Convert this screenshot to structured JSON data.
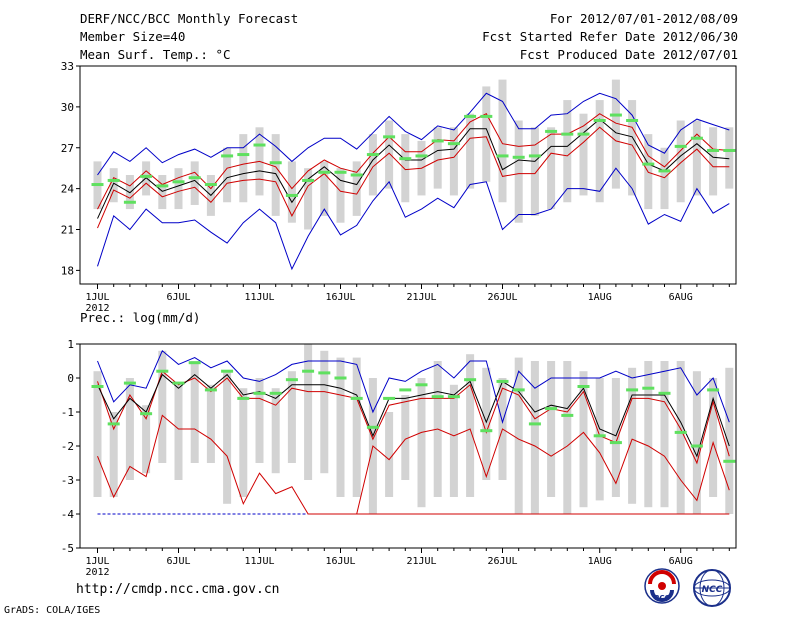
{
  "header": {
    "title": "DERF/NCC/BCC Monthly Forecast",
    "member_size": "Member Size=40",
    "variable": "Mean Surf. Temp.: °C",
    "period": "For 2012/07/01-2012/08/09",
    "fcst_started": "Fcst Started Refer Date 2012/06/30",
    "fcst_produced": "Fcst Produced Date 2012/07/01"
  },
  "footer": {
    "url": "http://cmdp.ncc.cma.gov.cn",
    "grads": "GrADS: COLA/IGES",
    "logo_bcc": "BCC",
    "logo_ncc": "NCC"
  },
  "colors": {
    "box": "#d3d3d3",
    "green": "#5fe05f",
    "blue": "#0000c8",
    "red": "#d00000",
    "black": "#000000"
  },
  "chart_data": [
    {
      "type": "box",
      "title": "Mean Surf. Temp.: °C",
      "ylim": [
        17,
        33
      ],
      "yticks": [
        18,
        21,
        24,
        27,
        30,
        33
      ],
      "x_labels": [
        {
          "day": 0,
          "label": "1JUL"
        },
        {
          "day": 5,
          "label": "6JUL"
        },
        {
          "day": 10,
          "label": "11JUL"
        },
        {
          "day": 15,
          "label": "16JUL"
        },
        {
          "day": 20,
          "label": "21JUL"
        },
        {
          "day": 25,
          "label": "26JUL"
        },
        {
          "day": 31,
          "label": "1AUG"
        },
        {
          "day": 36,
          "label": "6AUG"
        }
      ],
      "year_label": "2012",
      "days": 40,
      "box_low": [
        22.5,
        23.0,
        22.5,
        23.5,
        22.5,
        22.5,
        22.8,
        22.0,
        23.0,
        23.0,
        23.5,
        22.0,
        21.5,
        21.0,
        22.0,
        21.5,
        22.0,
        23.5,
        24.0,
        23.0,
        23.5,
        24.0,
        23.5,
        24.0,
        24.5,
        23.0,
        21.5,
        22.0,
        22.5,
        23.0,
        23.5,
        23.0,
        24.0,
        23.5,
        22.5,
        22.5,
        23.0,
        23.5,
        23.5,
        24.0
      ],
      "box_high": [
        26.0,
        25.5,
        25.0,
        26.0,
        25.0,
        25.5,
        26.0,
        25.0,
        27.0,
        28.0,
        28.5,
        28.0,
        26.0,
        25.5,
        26.0,
        25.5,
        26.0,
        28.0,
        29.0,
        28.0,
        27.5,
        28.5,
        28.5,
        29.5,
        31.5,
        32.0,
        29.0,
        28.5,
        28.5,
        30.5,
        29.5,
        30.5,
        32.0,
        30.5,
        28.0,
        27.0,
        29.0,
        29.0,
        28.5,
        28.5
      ],
      "green": [
        24.3,
        24.6,
        23.0,
        24.9,
        24.2,
        24.5,
        24.8,
        24.3,
        26.4,
        26.5,
        27.2,
        25.9,
        23.5,
        24.6,
        25.2,
        25.2,
        25.0,
        26.5,
        27.8,
        26.2,
        26.4,
        27.5,
        27.3,
        29.3,
        29.3,
        26.4,
        26.3,
        26.4,
        28.2,
        28.0,
        28.0,
        29.0,
        29.4,
        29.0,
        25.8,
        25.3,
        27.1,
        27.7,
        26.8,
        26.8
      ],
      "blue_high": [
        25.0,
        26.7,
        26.0,
        27.0,
        25.9,
        26.5,
        26.9,
        26.3,
        27.0,
        27.0,
        28.0,
        27.1,
        26.0,
        27.0,
        27.7,
        27.7,
        26.9,
        28.1,
        29.3,
        28.2,
        27.6,
        28.6,
        28.3,
        29.6,
        31.0,
        30.4,
        28.4,
        28.4,
        29.4,
        29.5,
        30.4,
        31.0,
        30.6,
        29.4,
        27.2,
        26.6,
        28.3,
        29.1,
        28.7,
        28.3
      ],
      "red_high": [
        22.5,
        24.8,
        24.2,
        25.3,
        24.3,
        24.8,
        25.2,
        24.0,
        25.5,
        25.8,
        26.0,
        25.6,
        24.0,
        25.3,
        26.1,
        25.5,
        25.2,
        26.6,
        27.8,
        26.7,
        26.7,
        27.6,
        27.5,
        28.9,
        29.5,
        27.3,
        27.1,
        27.2,
        28.0,
        28.0,
        28.6,
        29.5,
        28.8,
        28.5,
        26.4,
        25.6,
        26.8,
        28.0,
        26.9,
        26.8
      ],
      "black": [
        21.8,
        24.4,
        23.7,
        24.8,
        23.8,
        24.2,
        24.6,
        23.5,
        24.8,
        25.1,
        25.3,
        25.1,
        23.0,
        24.7,
        25.6,
        24.6,
        24.3,
        26.1,
        27.2,
        26.1,
        26.1,
        26.8,
        26.9,
        28.4,
        28.4,
        25.4,
        26.1,
        26.0,
        27.1,
        27.1,
        28.1,
        29.1,
        28.1,
        27.8,
        25.8,
        25.3,
        26.4,
        27.3,
        26.3,
        26.2
      ],
      "red_low": [
        21.1,
        23.9,
        23.3,
        24.4,
        23.4,
        23.8,
        24.1,
        23.0,
        24.4,
        24.6,
        24.7,
        24.5,
        22.0,
        24.2,
        25.1,
        23.8,
        23.6,
        25.6,
        26.6,
        25.4,
        25.5,
        26.1,
        26.3,
        27.7,
        27.8,
        24.9,
        25.1,
        25.1,
        26.6,
        26.4,
        27.4,
        28.5,
        27.5,
        27.2,
        25.2,
        24.8,
        25.9,
        26.9,
        25.6,
        25.6
      ],
      "blue_low": [
        18.3,
        22.0,
        21.0,
        22.5,
        21.5,
        21.5,
        21.7,
        20.8,
        20.0,
        21.5,
        22.5,
        21.5,
        18.1,
        20.5,
        22.5,
        20.6,
        21.3,
        23.1,
        24.5,
        21.9,
        22.5,
        23.3,
        22.6,
        24.3,
        24.5,
        21.0,
        22.1,
        22.1,
        22.5,
        24.0,
        24.0,
        23.8,
        25.5,
        24.0,
        21.4,
        22.1,
        21.6,
        24.0,
        22.2,
        22.9
      ]
    },
    {
      "type": "box",
      "title": "Prec.: log(mm/d)",
      "ylim": [
        -5,
        1
      ],
      "yticks": [
        1,
        0,
        -1,
        -2,
        -3,
        -4,
        -5
      ],
      "x_labels": [
        {
          "day": 0,
          "label": "1JUL"
        },
        {
          "day": 5,
          "label": "6JUL"
        },
        {
          "day": 10,
          "label": "11JUL"
        },
        {
          "day": 15,
          "label": "16JUL"
        },
        {
          "day": 20,
          "label": "21JUL"
        },
        {
          "day": 25,
          "label": "26JUL"
        },
        {
          "day": 31,
          "label": "1AUG"
        },
        {
          "day": 36,
          "label": "6AUG"
        }
      ],
      "year_label": "2012",
      "days": 40,
      "box_low": [
        -3.5,
        -3.5,
        -3.0,
        -2.8,
        -2.5,
        -3.0,
        -2.5,
        -2.5,
        -3.7,
        -3.5,
        -2.5,
        -2.8,
        -2.5,
        -3.0,
        -2.8,
        -3.5,
        -3.5,
        -4.0,
        -3.5,
        -3.0,
        -3.8,
        -3.5,
        -3.5,
        -3.5,
        -3.0,
        -3.0,
        -4.0,
        -4.0,
        -3.5,
        -4.0,
        -3.8,
        -3.6,
        -3.5,
        -3.7,
        -3.8,
        -3.8,
        -4.0,
        -4.0,
        -3.5,
        -4.0
      ],
      "box_high": [
        0.2,
        -1.0,
        0.0,
        -0.8,
        0.8,
        -0.2,
        0.5,
        -0.2,
        0.2,
        -0.3,
        0.0,
        -0.3,
        0.2,
        1.0,
        0.8,
        0.6,
        0.6,
        0.0,
        -1.0,
        -0.5,
        0.0,
        0.5,
        -0.2,
        0.7,
        0.3,
        0.0,
        0.6,
        0.5,
        0.5,
        0.5,
        0.2,
        0.0,
        0.0,
        0.3,
        0.5,
        0.5,
        0.5,
        0.2,
        0.0,
        0.3
      ],
      "green": [
        -0.25,
        -1.35,
        -0.15,
        -1.05,
        0.2,
        -0.15,
        0.45,
        -0.35,
        0.2,
        -0.6,
        -0.45,
        -0.45,
        -0.05,
        0.2,
        0.15,
        0.0,
        -0.6,
        -1.45,
        -0.6,
        -0.35,
        -0.2,
        -0.55,
        -0.55,
        -0.05,
        -1.55,
        -0.1,
        -0.35,
        -1.35,
        -0.9,
        -1.1,
        -0.25,
        -1.7,
        -1.9,
        -0.35,
        -0.3,
        -0.45,
        -1.6,
        -2.0,
        -0.35,
        -2.45
      ],
      "blue_high": [
        0.5,
        -0.7,
        -0.2,
        -0.3,
        0.8,
        0.4,
        0.6,
        0.3,
        0.5,
        0.0,
        -0.1,
        0.1,
        0.4,
        0.5,
        0.5,
        0.5,
        0.4,
        -1.0,
        0.0,
        -0.1,
        0.2,
        0.4,
        0.0,
        0.5,
        0.5,
        -1.3,
        0.2,
        -0.3,
        0.0,
        0.0,
        0.0,
        0.0,
        0.2,
        0.0,
        0.1,
        0.2,
        0.3,
        -0.5,
        0.0,
        -1.3
      ],
      "red_high": [
        -0.1,
        -1.5,
        -0.5,
        -1.2,
        0.2,
        -0.2,
        0.0,
        -0.4,
        0.0,
        -0.6,
        -0.6,
        -0.8,
        -0.3,
        -0.4,
        -0.4,
        -0.5,
        -0.6,
        -1.8,
        -0.8,
        -0.7,
        -0.6,
        -0.6,
        -0.6,
        -0.2,
        -1.6,
        -0.3,
        -0.5,
        -1.2,
        -0.9,
        -1.0,
        -0.4,
        -1.7,
        -1.9,
        -0.6,
        -0.6,
        -0.7,
        -1.5,
        -2.5,
        -0.7,
        -2.3
      ],
      "black": [
        -0.2,
        -1.2,
        -0.6,
        -1.0,
        0.1,
        -0.3,
        0.1,
        -0.3,
        0.1,
        -0.5,
        -0.4,
        -0.6,
        -0.2,
        -0.2,
        -0.2,
        -0.3,
        -0.5,
        -1.7,
        -0.6,
        -0.6,
        -0.5,
        -0.4,
        -0.5,
        -0.1,
        -1.3,
        -0.1,
        -0.4,
        -1.0,
        -0.8,
        -0.9,
        -0.3,
        -1.5,
        -1.7,
        -0.5,
        -0.5,
        -0.5,
        -1.3,
        -2.3,
        -0.6,
        -2.0
      ],
      "red_low": [
        -2.3,
        -3.5,
        -2.6,
        -2.9,
        -1.1,
        -1.5,
        -1.5,
        -1.8,
        -2.3,
        -3.7,
        -2.8,
        -3.4,
        -3.2,
        -4.0,
        -4.0,
        -4.0,
        -4.0,
        -2.0,
        -2.4,
        -1.8,
        -1.6,
        -1.5,
        -1.7,
        -1.5,
        -2.9,
        -1.5,
        -1.8,
        -2.0,
        -2.3,
        -2.0,
        -1.6,
        -2.2,
        -3.1,
        -1.8,
        -2.0,
        -2.3,
        -3.0,
        -3.6,
        -1.9,
        -3.3
      ],
      "blue_low_dashed": [
        -4,
        -4,
        -4,
        -4,
        -4,
        -4,
        -4,
        -4,
        -4,
        -4,
        -4,
        -4,
        -4,
        -4
      ],
      "floor_value": -4
    }
  ]
}
